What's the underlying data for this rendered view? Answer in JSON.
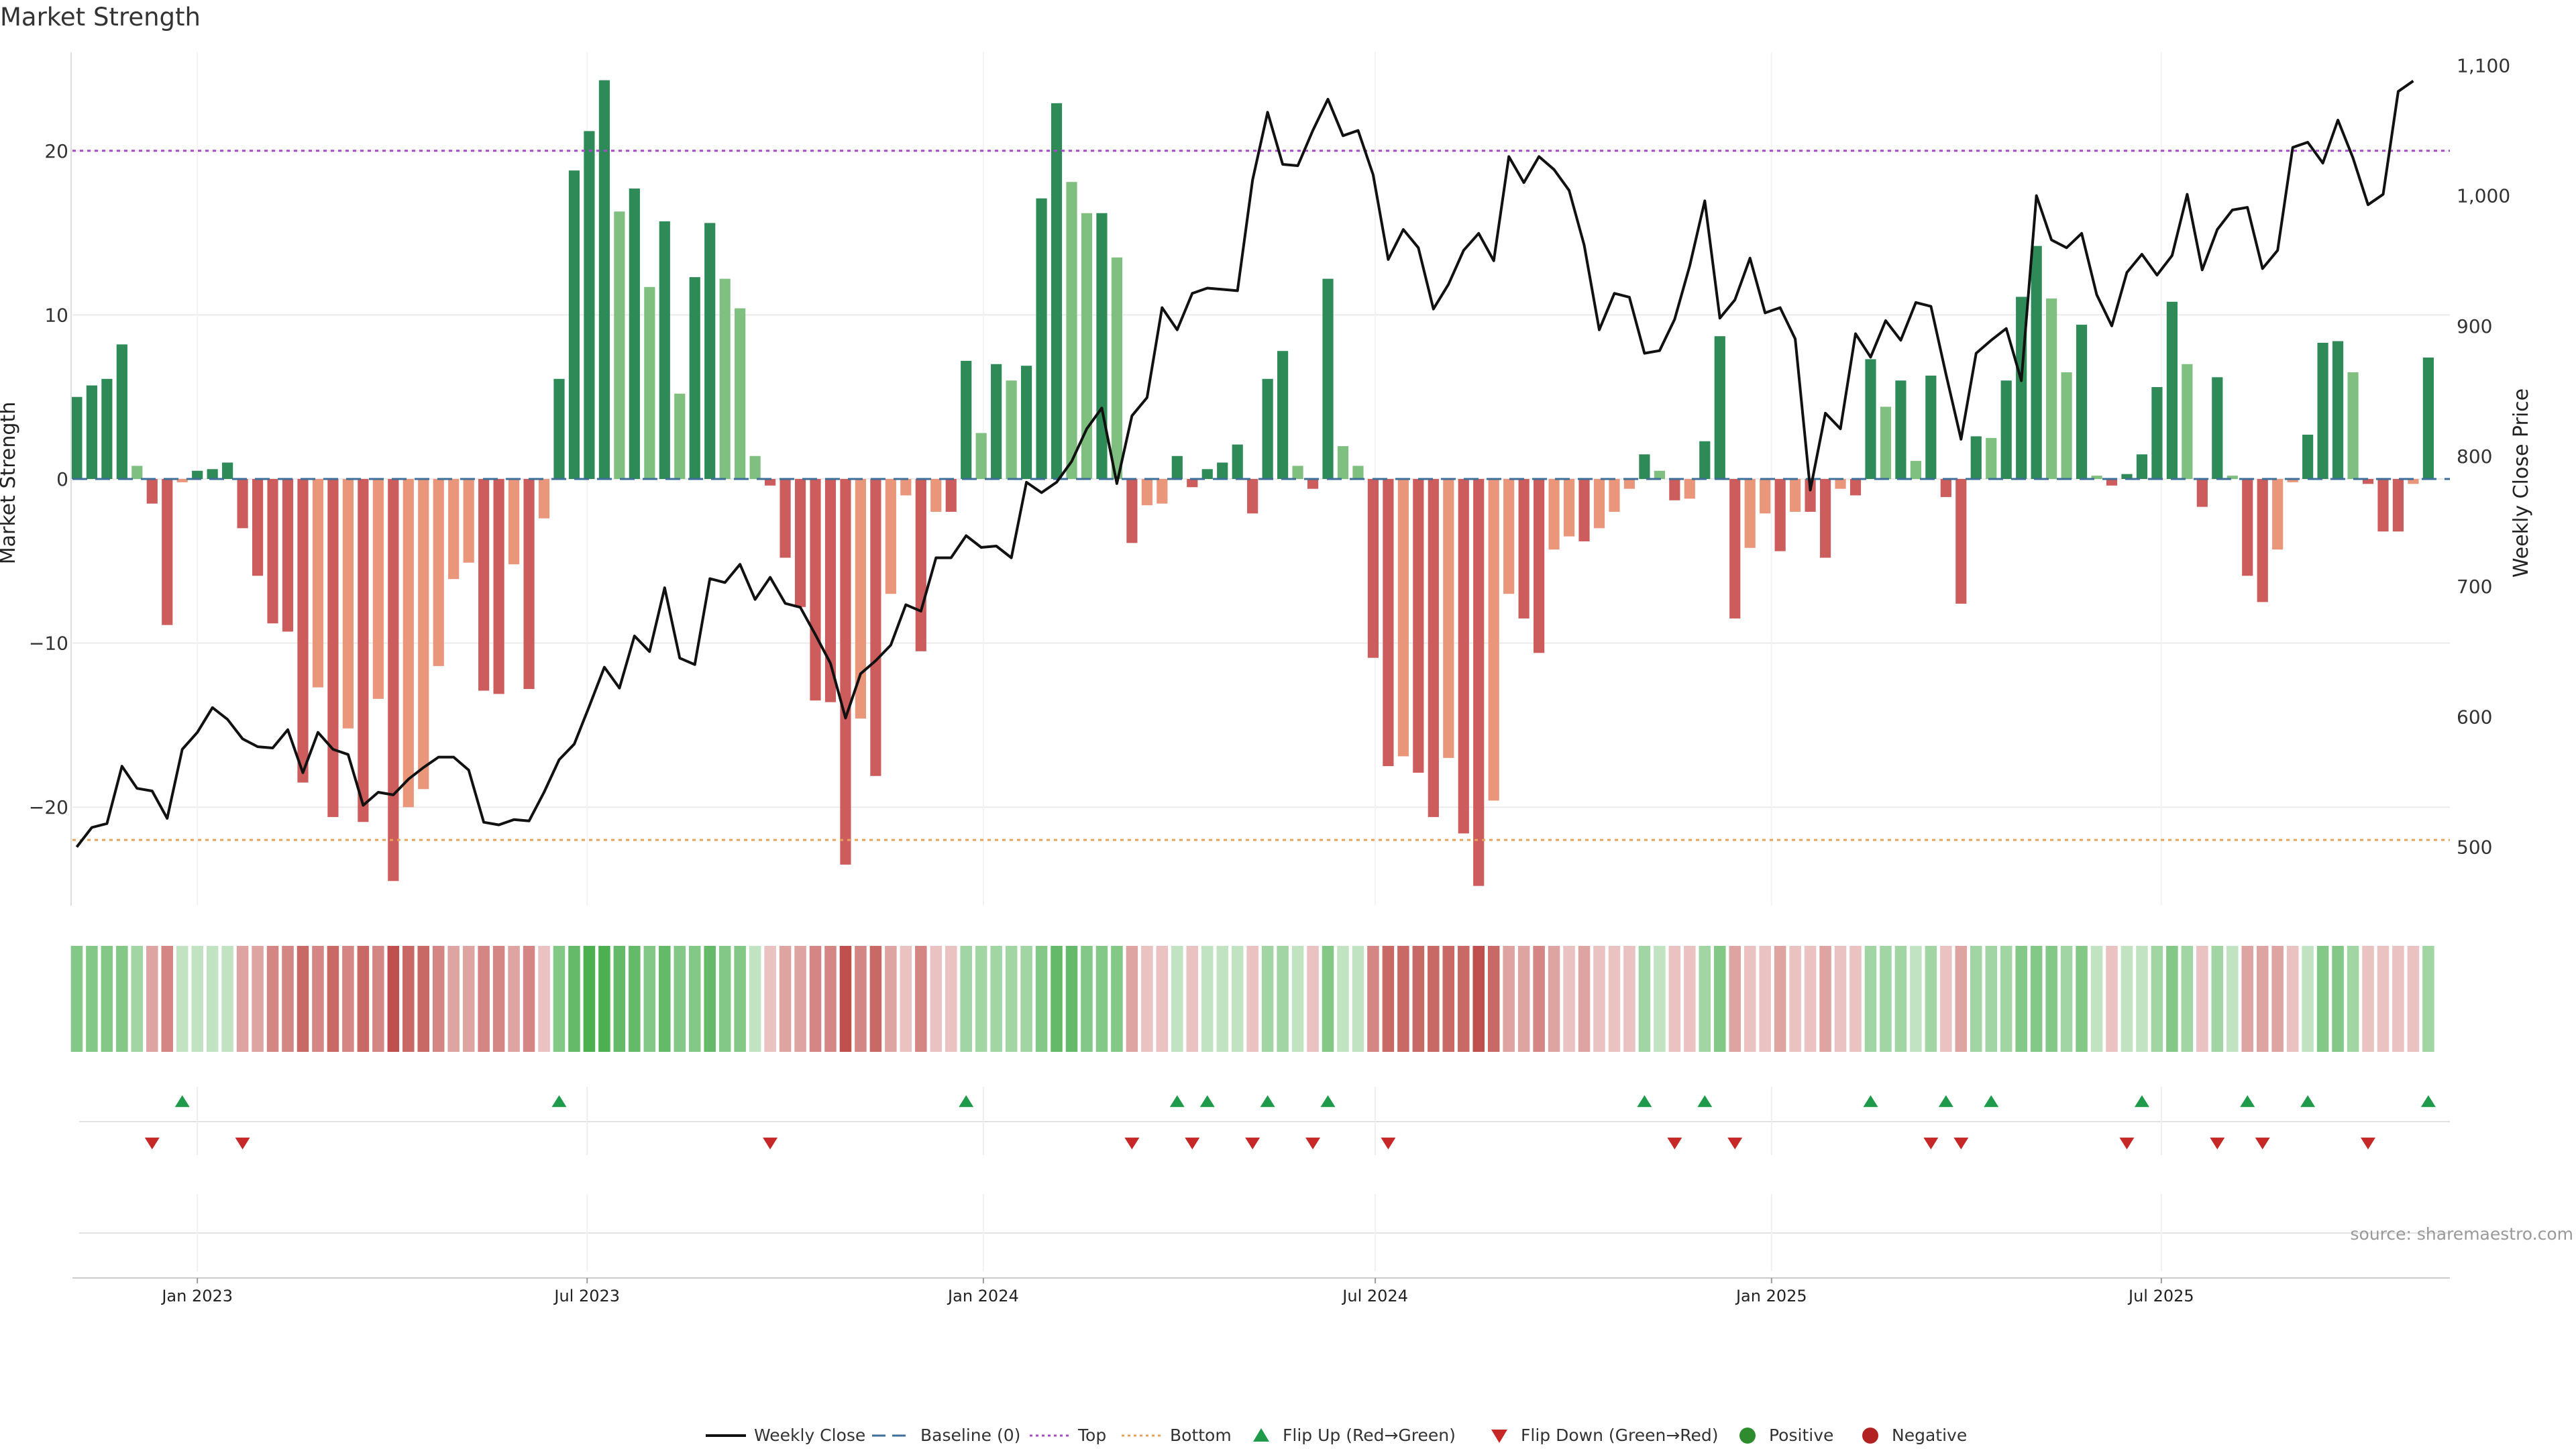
{
  "chart_data": {
    "type": "bar",
    "title": "Market Strength",
    "ylabel_left": "Market Strength",
    "ylabel_right": "Weekly Close Price",
    "source": "source: sharemaestro.com",
    "ylim_left": [
      -26,
      26
    ],
    "ylim_right": [
      455,
      1110
    ],
    "left_ticks": [
      20,
      10,
      0,
      -10,
      -20
    ],
    "left_tick_labels": [
      "20",
      "10",
      "0",
      "−10",
      "−20"
    ],
    "right_ticks": [
      1100,
      1000,
      900,
      800,
      700,
      600,
      500
    ],
    "right_tick_labels": [
      "1,100",
      "1,000",
      "900",
      "800",
      "700",
      "600",
      "500"
    ],
    "top_threshold": 20,
    "bottom_threshold": -22,
    "x_start": "2022-11-06",
    "x_step_days": 7,
    "x_range": [
      "2022-11-04",
      "2025-11-12"
    ],
    "x_ticks": [
      {
        "label": "Jan 2023",
        "date": "2023-01-01"
      },
      {
        "label": "Jul 2023",
        "date": "2023-07-01"
      },
      {
        "label": "Jan 2024",
        "date": "2024-01-01"
      },
      {
        "label": "Jul 2024",
        "date": "2024-07-01"
      },
      {
        "label": "Jan 2025",
        "date": "2025-01-01"
      },
      {
        "label": "Jul 2025",
        "date": "2025-07-01"
      }
    ],
    "strength": [
      5,
      5.7,
      6.1,
      8.2,
      0.8,
      -1.5,
      -8.9,
      -0.2,
      0.5,
      0.6,
      1.0,
      -3,
      -5.9,
      -8.8,
      -9.3,
      -18.5,
      -12.7,
      -20.6,
      -15.2,
      -20.9,
      -13.4,
      -24.5,
      -20,
      -18.9,
      -11.4,
      -6.1,
      -5.1,
      -12.9,
      -13.1,
      -5.2,
      -12.8,
      -2.4,
      6.1,
      18.8,
      21.2,
      24.3,
      16.3,
      17.7,
      11.7,
      15.7,
      5.2,
      12.3,
      15.6,
      12.2,
      10.4,
      1.4,
      -0.4,
      -4.8,
      -7.8,
      -13.5,
      -13.6,
      -23.5,
      -14.6,
      -18.1,
      -7,
      -1,
      -10.5,
      -2,
      -2,
      7.2,
      2.8,
      7,
      6,
      6.9,
      17.1,
      22.9,
      18.1,
      16.2,
      16.2,
      13.5,
      -3.9,
      -1.6,
      -1.5,
      1.4,
      -0.5,
      0.6,
      1.0,
      2.1,
      -2.1,
      6.1,
      7.8,
      0.8,
      -0.6,
      12.2,
      2.0,
      0.8,
      -10.9,
      -17.5,
      -16.9,
      -17.9,
      -20.6,
      -17,
      -21.6,
      -24.8,
      -19.6,
      -7,
      -8.5,
      -10.6,
      -4.3,
      -3.5,
      -3.8,
      -3,
      -2,
      -0.6,
      1.5,
      0.5,
      -1.3,
      -1.2,
      2.3,
      8.7,
      -8.5,
      -4.2,
      -2.1,
      -4.4,
      -2.0,
      -2.0,
      -4.8,
      -0.6,
      -1,
      7.3,
      4.4,
      6.0,
      1.1,
      6.3,
      -1.1,
      -7.6,
      2.6,
      2.5,
      6.0,
      11.1,
      14.2,
      11.0,
      6.5,
      9.4,
      0.2,
      -0.4,
      0.3,
      1.5,
      5.6,
      10.8,
      7.0,
      -1.7,
      6.2,
      0.2,
      -5.9,
      -7.5,
      -4.3,
      -0.2,
      2.7,
      8.3,
      8.4,
      6.5,
      -0.3,
      -3.2,
      -3.2,
      -0.3,
      7.4
    ],
    "weekly_close": [
      500,
      515,
      518,
      562,
      545,
      543,
      522,
      575,
      588,
      607,
      598,
      583,
      577,
      576,
      590,
      557,
      588,
      575,
      571,
      532,
      542,
      540,
      552,
      561,
      569,
      569,
      559,
      519,
      517,
      521,
      520,
      542,
      567,
      579,
      608,
      638,
      622,
      662,
      650,
      699,
      645,
      640,
      706,
      703,
      717,
      690,
      707,
      687,
      684,
      663,
      641,
      599,
      633,
      643,
      655,
      686,
      681,
      722,
      722,
      739,
      730,
      731,
      722,
      780,
      772,
      780,
      796,
      821,
      837,
      779,
      831,
      845,
      914,
      897,
      925,
      929,
      928,
      927,
      1012,
      1064,
      1024,
      1023,
      1050,
      1074,
      1046,
      1050,
      1016,
      951,
      974,
      960,
      913,
      932,
      958,
      971,
      950,
      1030,
      1010,
      1030,
      1020,
      1004,
      962,
      897,
      925,
      922,
      879,
      881,
      905,
      946,
      996,
      906,
      920,
      952,
      910,
      914,
      890,
      774,
      833,
      821,
      894,
      876,
      904,
      889,
      918,
      915,
      863,
      813,
      879,
      889,
      898,
      858,
      1000,
      966,
      960,
      971,
      924,
      900,
      941,
      955,
      939,
      954,
      1001,
      943,
      974,
      989,
      991,
      944,
      958,
      1037,
      1041,
      1025,
      1058,
      1029,
      993,
      1001,
      1080,
      1088
    ],
    "intensity_strip": [
      3,
      3,
      3,
      3,
      2,
      -2,
      -3,
      1,
      1,
      1,
      1,
      -2,
      -2,
      -3,
      -3,
      -4,
      -3,
      -4,
      -3,
      -4,
      -3,
      -5,
      -4,
      -4,
      -3,
      -2,
      -2,
      -3,
      -3,
      -2,
      -3,
      -1,
      3,
      4,
      5,
      5,
      4,
      4,
      3,
      4,
      3,
      3,
      4,
      3,
      3,
      1,
      -1,
      -2,
      -2,
      -3,
      -3,
      -5,
      -3,
      -4,
      -2,
      -1,
      -3,
      -1,
      -1,
      2,
      2,
      2,
      2,
      2,
      3,
      4,
      4,
      3,
      3,
      3,
      -2,
      -1,
      -1,
      1,
      -1,
      1,
      1,
      1,
      -1,
      2,
      2,
      1,
      -1,
      3,
      1,
      1,
      -3,
      -4,
      -4,
      -4,
      -4,
      -4,
      -4,
      -5,
      -4,
      -2,
      -2,
      -3,
      -2,
      -1,
      -2,
      -1,
      -1,
      -1,
      2,
      1,
      -1,
      -1,
      2,
      3,
      -2,
      -1,
      -1,
      -2,
      -1,
      -1,
      -2,
      -1,
      -1,
      2,
      2,
      2,
      1,
      2,
      -1,
      -2,
      2,
      2,
      2,
      3,
      3,
      3,
      2,
      3,
      1,
      -1,
      1,
      1,
      2,
      3,
      2,
      -1,
      2,
      1,
      -2,
      -2,
      -2,
      -1,
      1,
      3,
      3,
      2,
      -1,
      -1,
      -1,
      -1,
      2
    ],
    "flip_up_weeks": [
      7,
      32,
      59,
      73,
      75,
      79,
      83,
      104,
      108,
      119,
      124,
      127,
      137,
      144,
      148,
      156
    ],
    "flip_down_weeks": [
      5,
      11,
      46,
      70,
      74,
      78,
      82,
      87,
      106,
      110,
      123,
      125,
      136,
      142,
      145,
      152
    ],
    "legend": [
      {
        "label": "Weekly Close",
        "kind": "line",
        "color": "#111111"
      },
      {
        "label": "Baseline (0)",
        "kind": "dash",
        "color": "#3d6f99"
      },
      {
        "label": "Top",
        "kind": "dot",
        "color": "#a64ac9"
      },
      {
        "label": "Bottom",
        "kind": "dot",
        "color": "#e8a35a"
      },
      {
        "label": "Flip Up (Red→Green)",
        "kind": "tri-up",
        "color": "#1e9a4a"
      },
      {
        "label": "Flip Down (Green→Red)",
        "kind": "tri-down",
        "color": "#c62828"
      },
      {
        "label": "Positive",
        "kind": "circle",
        "color": "#2e8b2e"
      },
      {
        "label": "Negative",
        "kind": "circle",
        "color": "#b22222"
      }
    ],
    "colors": {
      "pos_strong": "#2e8b57",
      "pos_weak": "#7fbf7f",
      "neg_strong": "#cd5c5c",
      "neg_weak": "#e9967a",
      "strip_pos": "#4caf50",
      "strip_neg": "#c0504d",
      "price_line": "#111111"
    }
  }
}
